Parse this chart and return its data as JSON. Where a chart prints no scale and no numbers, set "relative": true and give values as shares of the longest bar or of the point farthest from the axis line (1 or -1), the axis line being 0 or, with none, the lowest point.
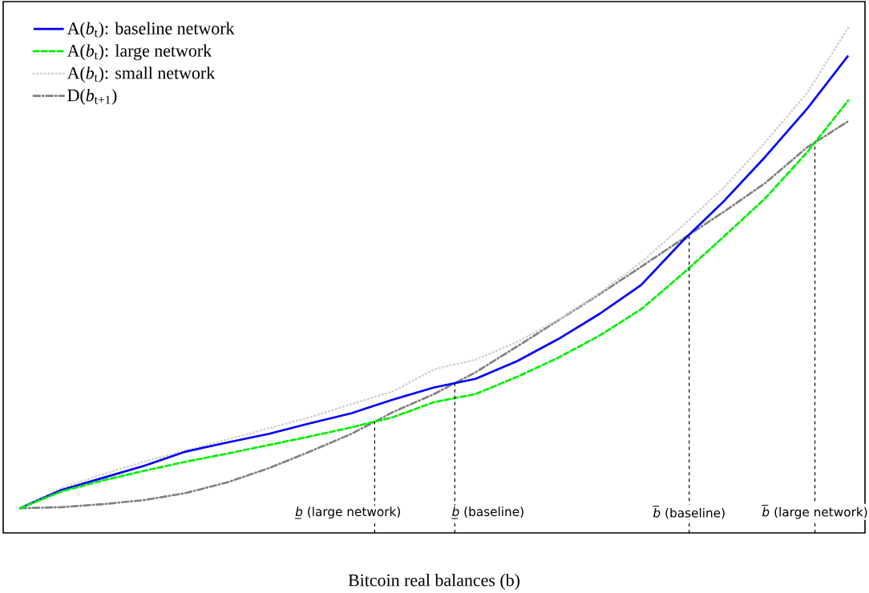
{
  "chart_data": {
    "type": "line",
    "relative": true,
    "xlabel": "Bitcoin real balances (b)",
    "legend": "top left",
    "categories": [
      null,
      null,
      null,
      null,
      null,
      null,
      null,
      null,
      null,
      null,
      null,
      null,
      null,
      null,
      null,
      null,
      null,
      null,
      null,
      null,
      null
    ],
    "series": [
      {
        "name": "A(*b*$_{t}$): baseline network",
        "color": "#0000ff",
        "line_style": "solid",
        "values": [
          0.049,
          0.085,
          0.109,
          0.133,
          0.161,
          0.179,
          0.196,
          0.217,
          0.237,
          0.264,
          0.288,
          0.305,
          0.34,
          0.384,
          0.434,
          0.491,
          0.578,
          0.657,
          0.745,
          0.839,
          0.945
        ]
      },
      {
        "name": "A(*b*$_{t}$): large network",
        "color": "#00ee00",
        "line_style": "dashed",
        "values": [
          0.049,
          0.082,
          0.104,
          0.123,
          0.141,
          0.157,
          0.174,
          0.191,
          0.209,
          0.229,
          0.259,
          0.275,
          0.309,
          0.347,
          0.391,
          0.443,
          0.513,
          0.587,
          0.663,
          0.753,
          0.856
        ]
      },
      {
        "name": "A(*b*$_{t}$): small network",
        "color": "#d3d3d3",
        "line_style": "dotted",
        "values": [
          0.049,
          0.089,
          0.116,
          0.141,
          0.163,
          0.185,
          0.207,
          0.229,
          0.255,
          0.28,
          0.324,
          0.343,
          0.378,
          0.422,
          0.475,
          0.536,
          0.608,
          0.684,
          0.774,
          0.87,
          1.0
        ]
      },
      {
        "name": "D(*b*$_{t+1}$)",
        "color": "#808080",
        "line_style": "dashdot",
        "values": [
          0.049,
          0.051,
          0.057,
          0.065,
          0.079,
          0.1,
          0.128,
          0.161,
          0.196,
          0.239,
          0.275,
          0.318,
          0.369,
          0.421,
          0.473,
          0.527,
          0.582,
          0.636,
          0.693,
          0.763,
          0.815
        ]
      }
    ],
    "annotations": [
      "*b̲* (large network)",
      "*b̲* (baseline)",
      "*b̅* (baseline)",
      "*b̅* (large network)"
    ]
  }
}
